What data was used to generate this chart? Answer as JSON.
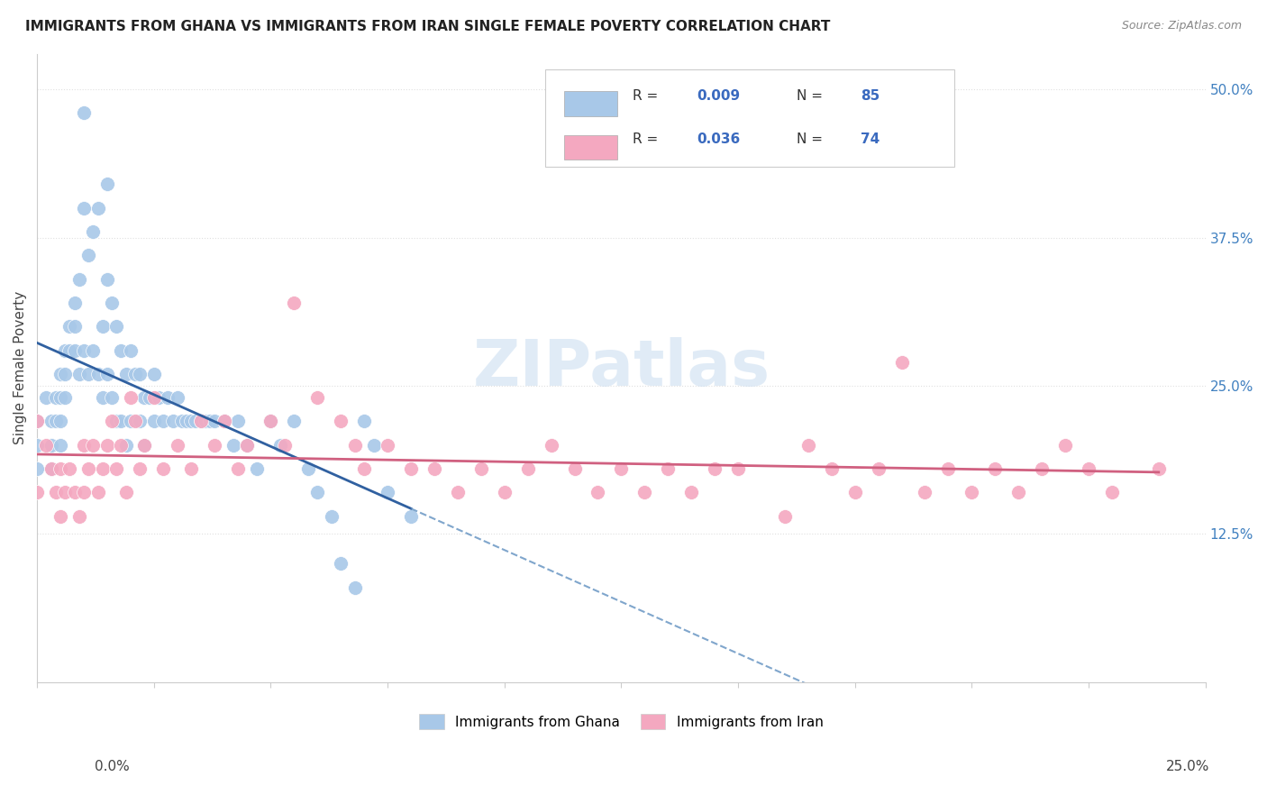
{
  "title": "IMMIGRANTS FROM GHANA VS IMMIGRANTS FROM IRAN SINGLE FEMALE POVERTY CORRELATION CHART",
  "source": "Source: ZipAtlas.com",
  "ylabel": "Single Female Poverty",
  "ghana_color": "#a8c8e8",
  "iran_color": "#f4a8c0",
  "ghana_line_color": "#3060a0",
  "iran_line_color": "#d06080",
  "ghana_R": 0.009,
  "ghana_N": 85,
  "iran_R": 0.036,
  "iran_N": 74,
  "watermark": "ZIPatlas",
  "background_color": "#ffffff",
  "grid_color": "#e0e0e0",
  "ytick_color": "#4080c0",
  "dashed_line_color": "#6090c0",
  "xlim": [
    0.0,
    0.25
  ],
  "ylim": [
    0.0,
    0.53
  ],
  "ghana_x": [
    0.0,
    0.0,
    0.0,
    0.002,
    0.003,
    0.003,
    0.003,
    0.004,
    0.004,
    0.005,
    0.005,
    0.005,
    0.005,
    0.006,
    0.006,
    0.006,
    0.007,
    0.007,
    0.008,
    0.008,
    0.008,
    0.009,
    0.009,
    0.01,
    0.01,
    0.01,
    0.011,
    0.011,
    0.012,
    0.012,
    0.013,
    0.013,
    0.014,
    0.014,
    0.015,
    0.015,
    0.015,
    0.016,
    0.016,
    0.017,
    0.017,
    0.018,
    0.018,
    0.019,
    0.019,
    0.02,
    0.02,
    0.021,
    0.022,
    0.022,
    0.023,
    0.023,
    0.024,
    0.025,
    0.025,
    0.026,
    0.027,
    0.028,
    0.029,
    0.03,
    0.031,
    0.032,
    0.033,
    0.034,
    0.035,
    0.036,
    0.037,
    0.038,
    0.04,
    0.042,
    0.043,
    0.045,
    0.047,
    0.05,
    0.052,
    0.055,
    0.058,
    0.06,
    0.063,
    0.065,
    0.068,
    0.07,
    0.072,
    0.075,
    0.08
  ],
  "ghana_y": [
    0.22,
    0.2,
    0.18,
    0.24,
    0.22,
    0.2,
    0.18,
    0.24,
    0.22,
    0.26,
    0.24,
    0.22,
    0.2,
    0.28,
    0.26,
    0.24,
    0.3,
    0.28,
    0.32,
    0.3,
    0.28,
    0.34,
    0.26,
    0.48,
    0.4,
    0.28,
    0.36,
    0.26,
    0.38,
    0.28,
    0.4,
    0.26,
    0.3,
    0.24,
    0.42,
    0.34,
    0.26,
    0.32,
    0.24,
    0.3,
    0.22,
    0.28,
    0.22,
    0.26,
    0.2,
    0.28,
    0.22,
    0.26,
    0.26,
    0.22,
    0.24,
    0.2,
    0.24,
    0.26,
    0.22,
    0.24,
    0.22,
    0.24,
    0.22,
    0.24,
    0.22,
    0.22,
    0.22,
    0.22,
    0.22,
    0.22,
    0.22,
    0.22,
    0.22,
    0.2,
    0.22,
    0.2,
    0.18,
    0.22,
    0.2,
    0.22,
    0.18,
    0.16,
    0.14,
    0.1,
    0.08,
    0.22,
    0.2,
    0.16,
    0.14
  ],
  "iran_x": [
    0.0,
    0.0,
    0.002,
    0.003,
    0.004,
    0.005,
    0.005,
    0.006,
    0.007,
    0.008,
    0.009,
    0.01,
    0.01,
    0.011,
    0.012,
    0.013,
    0.014,
    0.015,
    0.016,
    0.017,
    0.018,
    0.019,
    0.02,
    0.021,
    0.022,
    0.023,
    0.025,
    0.027,
    0.03,
    0.033,
    0.035,
    0.038,
    0.04,
    0.043,
    0.045,
    0.05,
    0.053,
    0.055,
    0.06,
    0.065,
    0.068,
    0.07,
    0.075,
    0.08,
    0.085,
    0.09,
    0.095,
    0.1,
    0.105,
    0.11,
    0.115,
    0.12,
    0.125,
    0.13,
    0.135,
    0.14,
    0.145,
    0.15,
    0.16,
    0.165,
    0.17,
    0.175,
    0.18,
    0.185,
    0.19,
    0.195,
    0.2,
    0.205,
    0.21,
    0.215,
    0.22,
    0.225,
    0.23,
    0.24
  ],
  "iran_y": [
    0.22,
    0.16,
    0.2,
    0.18,
    0.16,
    0.18,
    0.14,
    0.16,
    0.18,
    0.16,
    0.14,
    0.2,
    0.16,
    0.18,
    0.2,
    0.16,
    0.18,
    0.2,
    0.22,
    0.18,
    0.2,
    0.16,
    0.24,
    0.22,
    0.18,
    0.2,
    0.24,
    0.18,
    0.2,
    0.18,
    0.22,
    0.2,
    0.22,
    0.18,
    0.2,
    0.22,
    0.2,
    0.32,
    0.24,
    0.22,
    0.2,
    0.18,
    0.2,
    0.18,
    0.18,
    0.16,
    0.18,
    0.16,
    0.18,
    0.2,
    0.18,
    0.16,
    0.18,
    0.16,
    0.18,
    0.16,
    0.18,
    0.18,
    0.14,
    0.2,
    0.18,
    0.16,
    0.18,
    0.27,
    0.16,
    0.18,
    0.16,
    0.18,
    0.16,
    0.18,
    0.2,
    0.18,
    0.16,
    0.18
  ]
}
